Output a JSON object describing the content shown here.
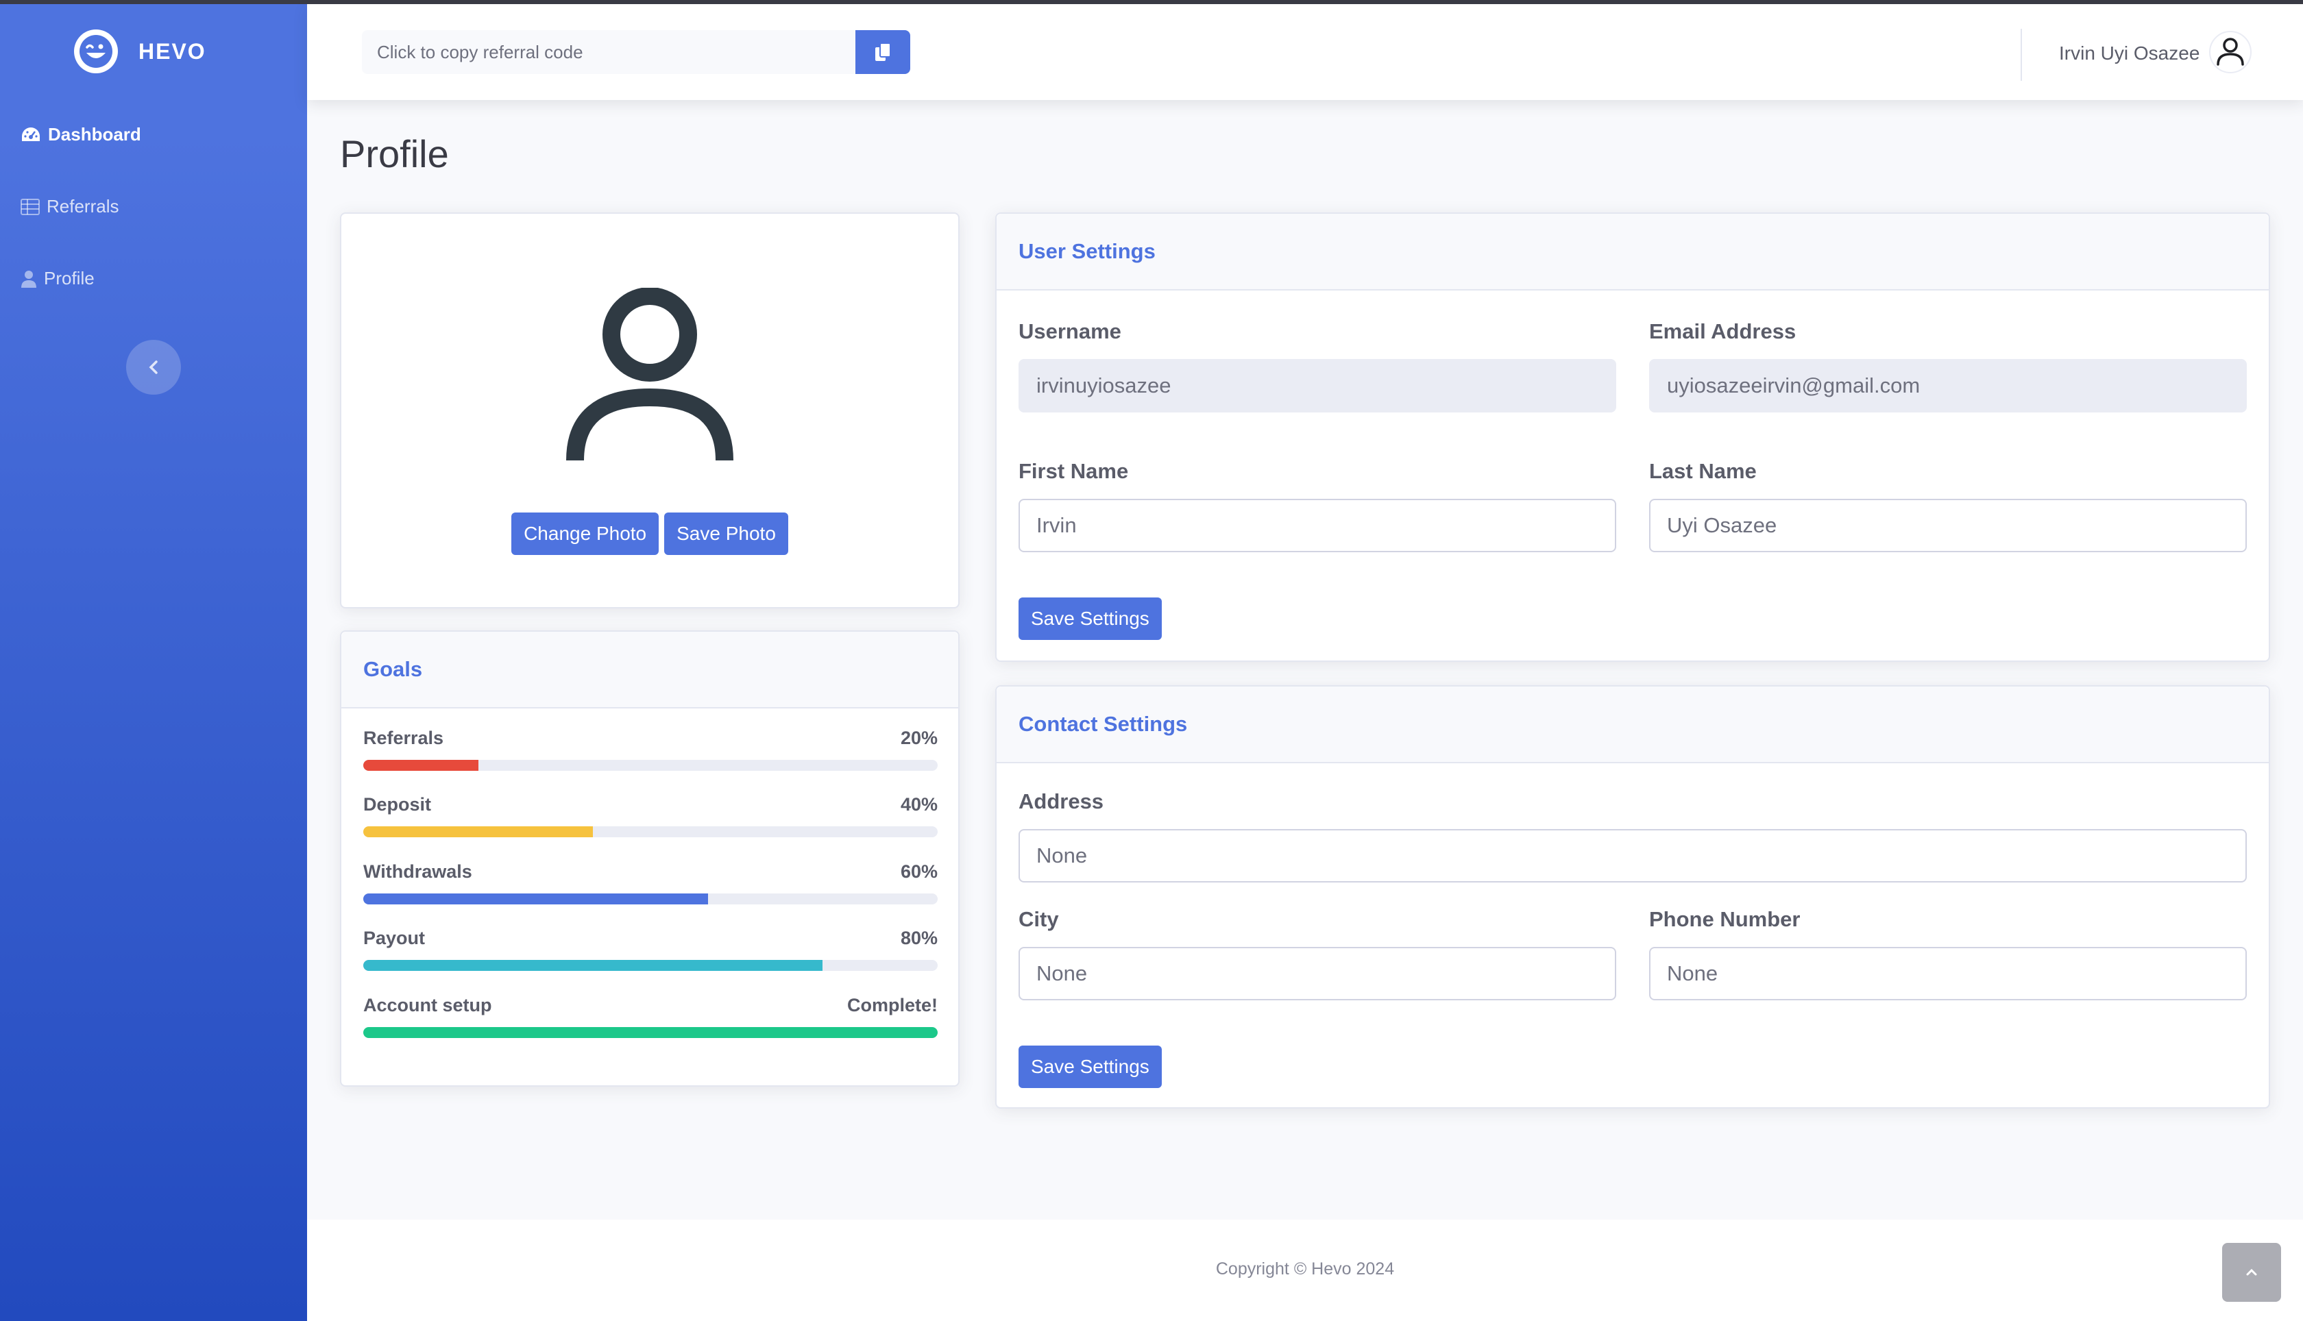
{
  "sidebar": {
    "brand": "HEVO",
    "items": [
      {
        "label": "Dashboard",
        "icon": "tachometer-icon",
        "active": true
      },
      {
        "label": "Referrals",
        "icon": "table-icon",
        "active": false
      },
      {
        "label": "Profile",
        "icon": "user-icon",
        "active": false
      }
    ],
    "toggle_icon": "chevron-left-icon"
  },
  "topbar": {
    "referral_placeholder": "Click to copy referral code",
    "copy_icon": "copy-icon",
    "user_name": "Irvin Uyi Osazee"
  },
  "page": {
    "title": "Profile"
  },
  "photo_card": {
    "change_label": "Change Photo",
    "save_label": "Save Photo"
  },
  "goals": {
    "title": "Goals",
    "items": [
      {
        "label": "Referrals",
        "value_text": "20%",
        "fraction": 0.2,
        "color": "#e74a3b"
      },
      {
        "label": "Deposit",
        "value_text": "40%",
        "fraction": 0.4,
        "color": "#f6c23e"
      },
      {
        "label": "Withdrawals",
        "value_text": "60%",
        "fraction": 0.6,
        "color": "#4e73df"
      },
      {
        "label": "Payout",
        "value_text": "80%",
        "fraction": 0.8,
        "color": "#36b9cc"
      },
      {
        "label": "Account setup",
        "value_text": "Complete!",
        "fraction": 1.0,
        "color": "#1cc88a"
      }
    ]
  },
  "user_settings": {
    "title": "User Settings",
    "username_label": "Username",
    "username_value": "irvinuyiosazee",
    "email_label": "Email Address",
    "email_value": "uyiosazeeirvin@gmail.com",
    "first_name_label": "First Name",
    "first_name_value": "Irvin",
    "last_name_label": "Last Name",
    "last_name_value": "Uyi Osazee",
    "save_label": "Save Settings"
  },
  "contact_settings": {
    "title": "Contact Settings",
    "address_label": "Address",
    "address_value": "None",
    "city_label": "City",
    "city_value": "None",
    "phone_label": "Phone Number",
    "phone_value": "None",
    "save_label": "Save Settings"
  },
  "footer": {
    "copyright": "Copyright © Hevo 2024"
  },
  "colors": {
    "primary": "#4e73df",
    "sidebar_gradient_end": "#224abe"
  }
}
